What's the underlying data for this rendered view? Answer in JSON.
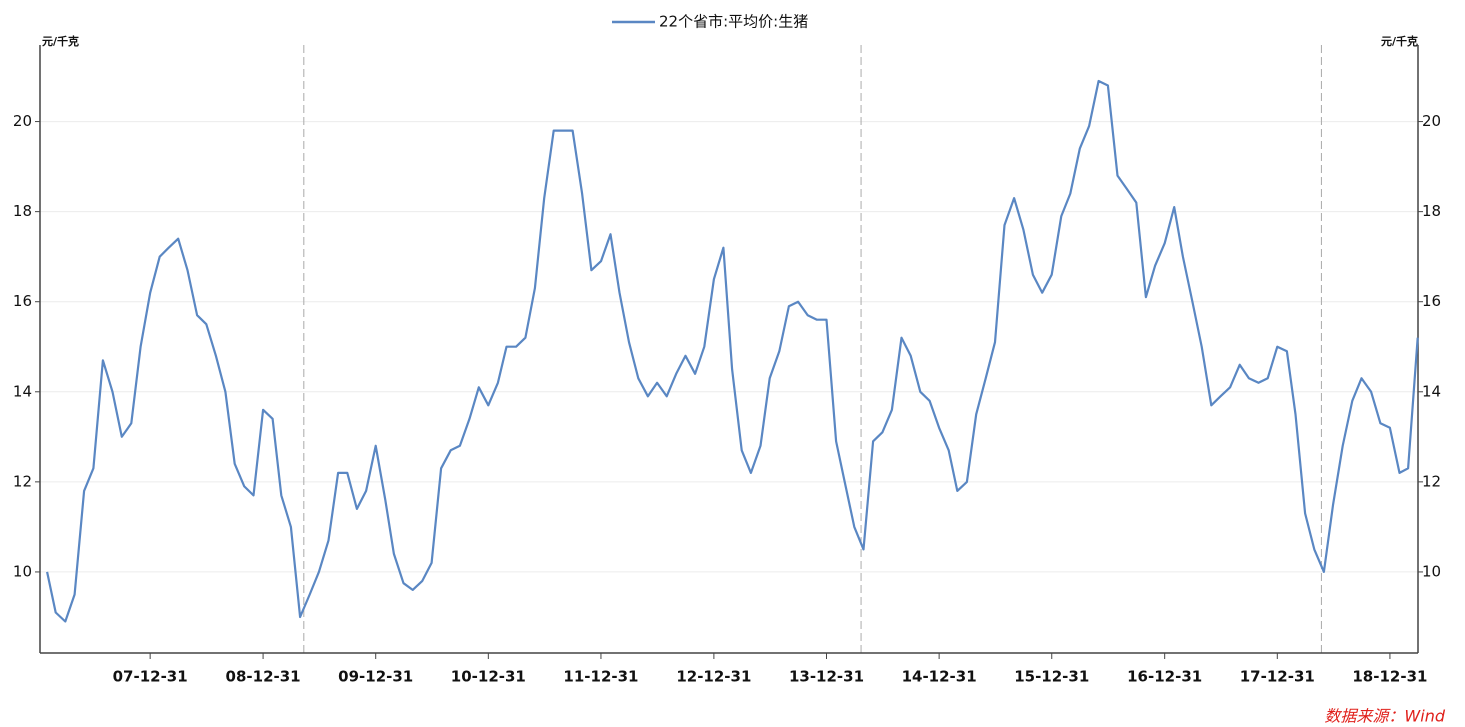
{
  "chart_data": {
    "type": "line",
    "legend_position": "top",
    "ylabel": "元/千克",
    "y2label": "元/千克",
    "source": "数据来源：Wind",
    "x": [
      "2007-01-31",
      "2007-02-28",
      "2007-03-31",
      "2007-04-30",
      "2007-05-31",
      "2007-06-30",
      "2007-07-31",
      "2007-08-31",
      "2007-09-30",
      "2007-10-31",
      "2007-11-30",
      "2007-12-31",
      "2008-01-31",
      "2008-02-29",
      "2008-03-31",
      "2008-04-30",
      "2008-05-31",
      "2008-06-30",
      "2008-07-31",
      "2008-08-31",
      "2008-09-30",
      "2008-10-31",
      "2008-11-30",
      "2008-12-31",
      "2009-01-31",
      "2009-02-28",
      "2009-03-31",
      "2009-04-30",
      "2009-05-31",
      "2009-06-30",
      "2009-07-31",
      "2009-08-31",
      "2009-09-30",
      "2009-10-31",
      "2009-11-30",
      "2009-12-31",
      "2010-01-31",
      "2010-02-28",
      "2010-03-31",
      "2010-04-30",
      "2010-05-31",
      "2010-06-30",
      "2010-07-31",
      "2010-08-31",
      "2010-09-30",
      "2010-10-31",
      "2010-11-30",
      "2010-12-31",
      "2011-01-31",
      "2011-02-28",
      "2011-03-31",
      "2011-04-30",
      "2011-05-31",
      "2011-06-30",
      "2011-07-31",
      "2011-08-31",
      "2011-09-30",
      "2011-10-31",
      "2011-11-30",
      "2011-12-31",
      "2012-01-31",
      "2012-02-29",
      "2012-03-31",
      "2012-04-30",
      "2012-05-31",
      "2012-06-30",
      "2012-07-31",
      "2012-08-31",
      "2012-09-30",
      "2012-10-31",
      "2012-11-30",
      "2012-12-31",
      "2013-01-31",
      "2013-02-28",
      "2013-03-31",
      "2013-04-30",
      "2013-05-31",
      "2013-06-30",
      "2013-07-31",
      "2013-08-31",
      "2013-09-30",
      "2013-10-31",
      "2013-11-30",
      "2013-12-31",
      "2014-01-31",
      "2014-02-28",
      "2014-03-31",
      "2014-04-30",
      "2014-05-31",
      "2014-06-30",
      "2014-07-31",
      "2014-08-31",
      "2014-09-30",
      "2014-10-31",
      "2014-11-30",
      "2014-12-31",
      "2015-01-31",
      "2015-02-28",
      "2015-03-31",
      "2015-04-30",
      "2015-05-31",
      "2015-06-30",
      "2015-07-31",
      "2015-08-31",
      "2015-09-30",
      "2015-10-31",
      "2015-11-30",
      "2015-12-31",
      "2016-01-31",
      "2016-02-29",
      "2016-03-31",
      "2016-04-30",
      "2016-05-31",
      "2016-06-30",
      "2016-07-31",
      "2016-08-31",
      "2016-09-30",
      "2016-10-31",
      "2016-11-30",
      "2016-12-31",
      "2017-01-31",
      "2017-02-28",
      "2017-03-31",
      "2017-04-30",
      "2017-05-31",
      "2017-06-30",
      "2017-07-31",
      "2017-08-31",
      "2017-09-30",
      "2017-10-31",
      "2017-11-30",
      "2017-12-31",
      "2018-01-31",
      "2018-02-28",
      "2018-03-31",
      "2018-04-30",
      "2018-05-31",
      "2018-06-30",
      "2018-07-31",
      "2018-08-31",
      "2018-09-30",
      "2018-10-31",
      "2018-11-30",
      "2018-12-31",
      "2019-01-31",
      "2019-02-28",
      "2019-03-31"
    ],
    "series": [
      {
        "name": "22个省市:平均价:生猪",
        "color": "#5a87c3",
        "values": [
          10.0,
          9.1,
          8.9,
          9.5,
          11.8,
          12.3,
          14.7,
          14.0,
          13.0,
          13.3,
          15.0,
          16.2,
          17.0,
          17.2,
          17.4,
          16.7,
          15.7,
          15.5,
          14.8,
          14.0,
          12.4,
          11.9,
          11.7,
          13.6,
          13.4,
          11.7,
          11.0,
          9.0,
          9.5,
          10.0,
          10.7,
          12.2,
          12.2,
          11.4,
          11.8,
          12.8,
          11.6,
          10.4,
          9.75,
          9.6,
          9.8,
          10.2,
          12.3,
          12.7,
          12.8,
          13.4,
          14.1,
          13.7,
          14.2,
          15.0,
          15.0,
          15.2,
          16.3,
          18.3,
          19.8,
          19.8,
          19.8,
          18.4,
          16.7,
          16.9,
          17.5,
          16.2,
          15.1,
          14.3,
          13.9,
          14.2,
          13.9,
          14.4,
          14.8,
          14.4,
          15.0,
          16.5,
          17.2,
          14.5,
          12.7,
          12.2,
          12.8,
          14.3,
          14.9,
          15.9,
          16.0,
          15.7,
          15.6,
          15.6,
          12.9,
          12.0,
          11.0,
          10.5,
          12.9,
          13.1,
          13.6,
          15.2,
          14.8,
          14.0,
          13.8,
          13.2,
          12.7,
          11.8,
          12.0,
          13.5,
          14.3,
          15.1,
          17.7,
          18.3,
          17.6,
          16.6,
          16.2,
          16.6,
          17.9,
          18.4,
          19.4,
          19.9,
          20.9,
          20.8,
          18.8,
          18.5,
          18.2,
          16.1,
          16.8,
          17.3,
          18.1,
          17.0,
          16.0,
          15.0,
          13.7,
          13.9,
          14.1,
          14.6,
          14.3,
          14.2,
          14.3,
          15.0,
          14.9,
          13.5,
          11.3,
          10.5,
          10.0,
          11.5,
          12.8,
          13.8,
          14.3,
          14.0,
          13.3,
          13.2,
          12.2,
          12.3,
          15.2
        ]
      }
    ],
    "xlim": [
      "2007-01-08",
      "2019-04-01"
    ],
    "xticks": [
      {
        "value": "2007-12-31",
        "label": "07-12-31"
      },
      {
        "value": "2008-12-31",
        "label": "08-12-31"
      },
      {
        "value": "2009-12-31",
        "label": "09-12-31"
      },
      {
        "value": "2010-12-31",
        "label": "10-12-31"
      },
      {
        "value": "2011-12-31",
        "label": "11-12-31"
      },
      {
        "value": "2012-12-31",
        "label": "12-12-31"
      },
      {
        "value": "2013-12-31",
        "label": "13-12-31"
      },
      {
        "value": "2014-12-31",
        "label": "14-12-31"
      },
      {
        "value": "2015-12-31",
        "label": "15-12-31"
      },
      {
        "value": "2016-12-31",
        "label": "16-12-31"
      },
      {
        "value": "2017-12-31",
        "label": "17-12-31"
      },
      {
        "value": "2018-12-31",
        "label": "18-12-31"
      }
    ],
    "ylim": [
      8.2,
      21.7
    ],
    "yticks": [
      10,
      12,
      14,
      16,
      18,
      20
    ],
    "y2lim": [
      8.2,
      21.7
    ],
    "y2ticks": [
      10,
      12,
      14,
      16,
      18,
      20
    ],
    "vlines": [
      "2009-05-12",
      "2014-04-22",
      "2018-05-23"
    ],
    "grid": true
  }
}
